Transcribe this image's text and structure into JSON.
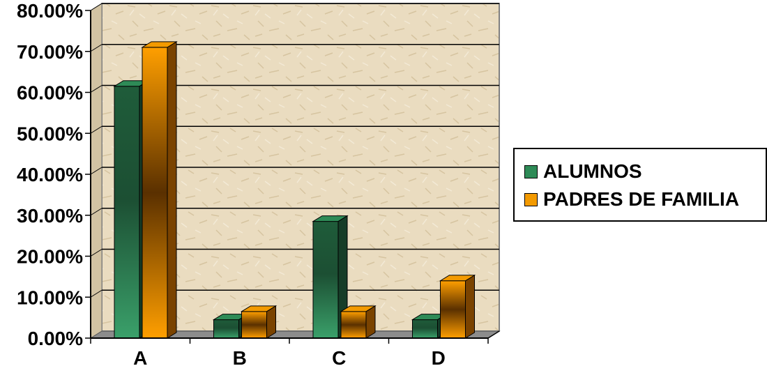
{
  "chart_data": {
    "type": "bar",
    "title": "",
    "xlabel": "",
    "ylabel": "",
    "categories": [
      "A",
      "B",
      "C",
      "D"
    ],
    "series": [
      {
        "name": "ALUMNOS",
        "values": [
          61.5,
          4.5,
          28.5,
          4.5
        ]
      },
      {
        "name": "PADRES DE FAMILIA",
        "values": [
          71.0,
          6.5,
          6.5,
          14.0
        ]
      }
    ],
    "ylim": [
      0,
      80
    ],
    "yticks": [
      "0.00%",
      "10.00%",
      "20.00%",
      "30.00%",
      "40.00%",
      "50.00%",
      "60.00%",
      "70.00%",
      "80.00%"
    ],
    "grid": true,
    "legend_position": "right",
    "colors": {
      "series": [
        "#2e8b57",
        "#f39a00"
      ],
      "background": "#e9dcc0"
    }
  }
}
